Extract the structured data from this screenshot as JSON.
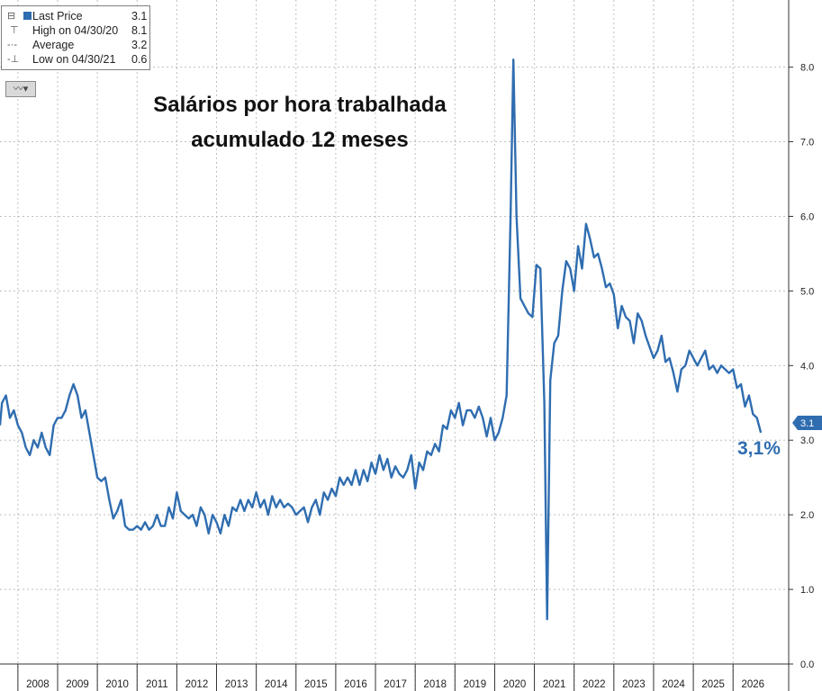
{
  "legend": {
    "rows": [
      {
        "label": "Last Price",
        "value": "3.1",
        "glyph": "square-marker"
      },
      {
        "label": "High on 04/30/20",
        "value": "8.1",
        "glyph": "T-high-marker"
      },
      {
        "label": "Average",
        "value": "3.2",
        "glyph": "dotted-avg-marker"
      },
      {
        "label": "Low on 04/30/21",
        "value": "0.6",
        "glyph": "T-low-marker"
      }
    ]
  },
  "toolbar": {
    "chart_type_icon": "line-chart-icon"
  },
  "annotation": {
    "last_value_label": "3,1%",
    "badge": "3.1"
  },
  "colors": {
    "series": "#2f6db0",
    "badge": "#2f6db0",
    "annotation": "#2f6db0",
    "grid": "#bfbfbf"
  },
  "chart_data": {
    "type": "line",
    "title": "Salários por hora trabalhada",
    "subtitle": "acumulado 12 meses",
    "xlabel": "",
    "ylabel": "",
    "x_ticks": [
      "2008",
      "2009",
      "2010",
      "2011",
      "2012",
      "2013",
      "2014",
      "2015",
      "2016",
      "2017",
      "2018",
      "2019",
      "2020",
      "2021",
      "2022",
      "2023",
      "2024",
      "2025",
      "2026"
    ],
    "y_ticks": [
      "0.0",
      "1.0",
      "2.0",
      "3.0",
      "4.0",
      "5.0",
      "6.0",
      "7.0",
      "8.0"
    ],
    "ylim": [
      0,
      8.9
    ],
    "xlim": [
      2007.05,
      2026.9
    ],
    "grid": true,
    "legend_position": "top-left",
    "series": [
      {
        "name": "Last Price",
        "points": [
          [
            2007.05,
            3.2
          ],
          [
            2007.1,
            3.5
          ],
          [
            2007.2,
            3.6
          ],
          [
            2007.3,
            3.3
          ],
          [
            2007.4,
            3.4
          ],
          [
            2007.5,
            3.2
          ],
          [
            2007.6,
            3.1
          ],
          [
            2007.7,
            2.9
          ],
          [
            2007.8,
            2.8
          ],
          [
            2007.9,
            3.0
          ],
          [
            2008.0,
            2.9
          ],
          [
            2008.1,
            3.1
          ],
          [
            2008.2,
            2.9
          ],
          [
            2008.3,
            2.8
          ],
          [
            2008.4,
            3.2
          ],
          [
            2008.5,
            3.3
          ],
          [
            2008.6,
            3.3
          ],
          [
            2008.7,
            3.4
          ],
          [
            2008.8,
            3.6
          ],
          [
            2008.9,
            3.75
          ],
          [
            2009.0,
            3.6
          ],
          [
            2009.1,
            3.3
          ],
          [
            2009.2,
            3.4
          ],
          [
            2009.3,
            3.1
          ],
          [
            2009.4,
            2.8
          ],
          [
            2009.5,
            2.5
          ],
          [
            2009.6,
            2.45
          ],
          [
            2009.7,
            2.5
          ],
          [
            2009.8,
            2.2
          ],
          [
            2009.9,
            1.95
          ],
          [
            2010.0,
            2.05
          ],
          [
            2010.1,
            2.2
          ],
          [
            2010.2,
            1.85
          ],
          [
            2010.3,
            1.8
          ],
          [
            2010.4,
            1.8
          ],
          [
            2010.5,
            1.85
          ],
          [
            2010.6,
            1.8
          ],
          [
            2010.7,
            1.9
          ],
          [
            2010.8,
            1.8
          ],
          [
            2010.9,
            1.85
          ],
          [
            2011.0,
            2.0
          ],
          [
            2011.1,
            1.85
          ],
          [
            2011.2,
            1.85
          ],
          [
            2011.3,
            2.1
          ],
          [
            2011.4,
            1.95
          ],
          [
            2011.5,
            2.3
          ],
          [
            2011.6,
            2.05
          ],
          [
            2011.7,
            2.0
          ],
          [
            2011.8,
            1.95
          ],
          [
            2011.9,
            2.0
          ],
          [
            2012.0,
            1.85
          ],
          [
            2012.1,
            2.1
          ],
          [
            2012.2,
            2.0
          ],
          [
            2012.3,
            1.75
          ],
          [
            2012.4,
            2.0
          ],
          [
            2012.5,
            1.9
          ],
          [
            2012.6,
            1.75
          ],
          [
            2012.7,
            2.0
          ],
          [
            2012.8,
            1.85
          ],
          [
            2012.9,
            2.1
          ],
          [
            2013.0,
            2.05
          ],
          [
            2013.1,
            2.2
          ],
          [
            2013.2,
            2.05
          ],
          [
            2013.3,
            2.2
          ],
          [
            2013.4,
            2.1
          ],
          [
            2013.5,
            2.3
          ],
          [
            2013.6,
            2.1
          ],
          [
            2013.7,
            2.2
          ],
          [
            2013.8,
            2.0
          ],
          [
            2013.9,
            2.25
          ],
          [
            2014.0,
            2.1
          ],
          [
            2014.1,
            2.2
          ],
          [
            2014.2,
            2.1
          ],
          [
            2014.3,
            2.15
          ],
          [
            2014.4,
            2.1
          ],
          [
            2014.5,
            2.0
          ],
          [
            2014.6,
            2.05
          ],
          [
            2014.7,
            2.1
          ],
          [
            2014.8,
            1.9
          ],
          [
            2014.9,
            2.1
          ],
          [
            2015.0,
            2.2
          ],
          [
            2015.1,
            2.0
          ],
          [
            2015.2,
            2.3
          ],
          [
            2015.3,
            2.2
          ],
          [
            2015.4,
            2.35
          ],
          [
            2015.5,
            2.25
          ],
          [
            2015.6,
            2.5
          ],
          [
            2015.7,
            2.4
          ],
          [
            2015.8,
            2.5
          ],
          [
            2015.9,
            2.4
          ],
          [
            2016.0,
            2.6
          ],
          [
            2016.1,
            2.4
          ],
          [
            2016.2,
            2.6
          ],
          [
            2016.3,
            2.45
          ],
          [
            2016.4,
            2.7
          ],
          [
            2016.5,
            2.55
          ],
          [
            2016.6,
            2.8
          ],
          [
            2016.7,
            2.6
          ],
          [
            2016.8,
            2.75
          ],
          [
            2016.9,
            2.5
          ],
          [
            2017.0,
            2.65
          ],
          [
            2017.1,
            2.55
          ],
          [
            2017.2,
            2.5
          ],
          [
            2017.3,
            2.6
          ],
          [
            2017.4,
            2.8
          ],
          [
            2017.5,
            2.35
          ],
          [
            2017.6,
            2.7
          ],
          [
            2017.7,
            2.6
          ],
          [
            2017.8,
            2.85
          ],
          [
            2017.9,
            2.8
          ],
          [
            2018.0,
            2.95
          ],
          [
            2018.1,
            2.85
          ],
          [
            2018.2,
            3.2
          ],
          [
            2018.3,
            3.15
          ],
          [
            2018.4,
            3.4
          ],
          [
            2018.5,
            3.3
          ],
          [
            2018.6,
            3.5
          ],
          [
            2018.7,
            3.2
          ],
          [
            2018.8,
            3.4
          ],
          [
            2018.9,
            3.4
          ],
          [
            2019.0,
            3.3
          ],
          [
            2019.1,
            3.45
          ],
          [
            2019.2,
            3.3
          ],
          [
            2019.3,
            3.05
          ],
          [
            2019.4,
            3.3
          ],
          [
            2019.5,
            3.0
          ],
          [
            2019.6,
            3.1
          ],
          [
            2019.7,
            3.3
          ],
          [
            2019.8,
            3.6
          ],
          [
            2019.9,
            6.0
          ],
          [
            2019.97,
            8.1
          ],
          [
            2020.05,
            6.0
          ],
          [
            2020.15,
            4.9
          ],
          [
            2020.25,
            4.8
          ],
          [
            2020.35,
            4.7
          ],
          [
            2020.45,
            4.65
          ],
          [
            2020.55,
            5.35
          ],
          [
            2020.65,
            5.3
          ],
          [
            2020.75,
            3.5
          ],
          [
            2020.82,
            0.6
          ],
          [
            2020.9,
            3.8
          ],
          [
            2021.0,
            4.3
          ],
          [
            2021.1,
            4.4
          ],
          [
            2021.2,
            5.0
          ],
          [
            2021.3,
            5.4
          ],
          [
            2021.4,
            5.3
          ],
          [
            2021.5,
            5.0
          ],
          [
            2021.6,
            5.6
          ],
          [
            2021.7,
            5.3
          ],
          [
            2021.8,
            5.9
          ],
          [
            2021.9,
            5.7
          ],
          [
            2022.0,
            5.45
          ],
          [
            2022.1,
            5.5
          ],
          [
            2022.2,
            5.3
          ],
          [
            2022.3,
            5.05
          ],
          [
            2022.4,
            5.1
          ],
          [
            2022.5,
            4.95
          ],
          [
            2022.6,
            4.5
          ],
          [
            2022.7,
            4.8
          ],
          [
            2022.8,
            4.65
          ],
          [
            2022.9,
            4.6
          ],
          [
            2023.0,
            4.3
          ],
          [
            2023.1,
            4.7
          ],
          [
            2023.2,
            4.6
          ],
          [
            2023.3,
            4.4
          ],
          [
            2023.4,
            4.25
          ],
          [
            2023.5,
            4.1
          ],
          [
            2023.6,
            4.2
          ],
          [
            2023.7,
            4.4
          ],
          [
            2023.8,
            4.05
          ],
          [
            2023.9,
            4.1
          ],
          [
            2024.0,
            3.9
          ],
          [
            2024.1,
            3.65
          ],
          [
            2024.2,
            3.95
          ],
          [
            2024.3,
            4.0
          ],
          [
            2024.4,
            4.2
          ],
          [
            2024.5,
            4.1
          ],
          [
            2024.6,
            4.0
          ],
          [
            2024.7,
            4.1
          ],
          [
            2024.8,
            4.2
          ],
          [
            2024.9,
            3.95
          ],
          [
            2025.0,
            4.0
          ],
          [
            2025.1,
            3.9
          ],
          [
            2025.2,
            4.0
          ],
          [
            2025.3,
            3.95
          ],
          [
            2025.4,
            3.9
          ],
          [
            2025.5,
            3.95
          ],
          [
            2025.6,
            3.7
          ],
          [
            2025.7,
            3.75
          ],
          [
            2025.8,
            3.45
          ],
          [
            2025.9,
            3.6
          ],
          [
            2026.0,
            3.35
          ],
          [
            2026.1,
            3.3
          ],
          [
            2026.2,
            3.1
          ]
        ]
      }
    ]
  }
}
